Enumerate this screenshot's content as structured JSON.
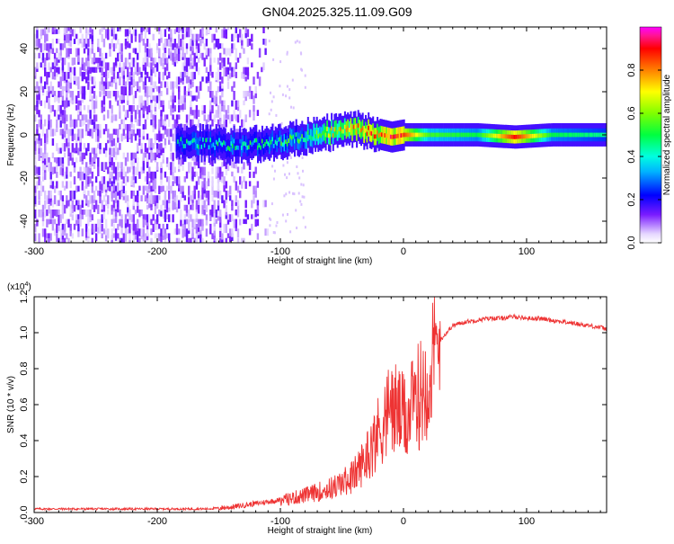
{
  "title": "GN04.2025.325.11.09.G09",
  "colors": {
    "snr_line": "#ee3333",
    "frame": "#000000",
    "background": "#ffffff"
  },
  "chart_data": [
    {
      "type": "heatmap",
      "xlabel": "Height of straight line (km)",
      "ylabel": "Frequency (Hz)",
      "xlim": [
        -300,
        165
      ],
      "ylim": [
        -50,
        50
      ],
      "x_ticks": [
        -300,
        -200,
        -100,
        0,
        100
      ],
      "y_ticks": [
        -40,
        -20,
        0,
        20,
        40
      ],
      "grid": false,
      "colorbar": {
        "label": "Normalized spectral amplitude",
        "range": [
          0,
          1
        ],
        "ticks": [
          "0.0",
          "0.2",
          "0.4",
          "0.6",
          "0.8"
        ],
        "colormap": "rainbow"
      },
      "features": {
        "noise_region_x": [
          -300,
          -110
        ],
        "carrier_track": [
          {
            "x": -185,
            "freq": -3,
            "amp": 0.35
          },
          {
            "x": -160,
            "freq": -4,
            "amp": 0.4
          },
          {
            "x": -130,
            "freq": -5,
            "amp": 0.4
          },
          {
            "x": -100,
            "freq": -3,
            "amp": 0.45
          },
          {
            "x": -80,
            "freq": -1,
            "amp": 0.5
          },
          {
            "x": -60,
            "freq": 1,
            "amp": 0.65
          },
          {
            "x": -40,
            "freq": 3,
            "amp": 0.75
          },
          {
            "x": -25,
            "freq": 1,
            "amp": 0.8
          },
          {
            "x": -10,
            "freq": -1,
            "amp": 0.85
          },
          {
            "x": 0,
            "freq": 0,
            "amp": 0.85
          },
          {
            "x": 20,
            "freq": 0,
            "amp": 0.55
          },
          {
            "x": 60,
            "freq": 0,
            "amp": 0.5
          },
          {
            "x": 90,
            "freq": -1,
            "amp": 0.9
          },
          {
            "x": 120,
            "freq": 0,
            "amp": 0.5
          },
          {
            "x": 165,
            "freq": 0,
            "amp": 0.45
          }
        ]
      }
    },
    {
      "type": "line",
      "xlabel": "Height of straight line (km)",
      "ylabel": "SNR (10 * v/v)",
      "y_multiplier": "(x10^4)",
      "xlim": [
        -300,
        165
      ],
      "ylim": [
        0,
        1.2
      ],
      "x_ticks": [
        -300,
        -200,
        -100,
        0,
        100
      ],
      "y_ticks": [
        0.0,
        0.2,
        0.4,
        0.6,
        0.8,
        1.0,
        1.2
      ],
      "grid": false,
      "series": [
        {
          "x": [
            -300,
            -250,
            -200,
            -160,
            -140,
            -120,
            -100,
            -80,
            -60,
            -50,
            -40,
            -35,
            -30,
            -25,
            -20,
            -15,
            -10,
            -5,
            0,
            5,
            10,
            15,
            20,
            25,
            30,
            40,
            50,
            60,
            70,
            80,
            90,
            100,
            110,
            120,
            130,
            140,
            150,
            160,
            165
          ],
          "values": [
            0.02,
            0.02,
            0.02,
            0.02,
            0.03,
            0.05,
            0.07,
            0.1,
            0.14,
            0.17,
            0.22,
            0.27,
            0.33,
            0.4,
            0.48,
            0.55,
            0.62,
            0.6,
            0.55,
            0.58,
            0.65,
            0.72,
            0.8,
            0.88,
            0.96,
            1.04,
            1.06,
            1.07,
            1.08,
            1.08,
            1.09,
            1.08,
            1.08,
            1.07,
            1.06,
            1.05,
            1.04,
            1.03,
            1.02
          ]
        }
      ]
    }
  ]
}
